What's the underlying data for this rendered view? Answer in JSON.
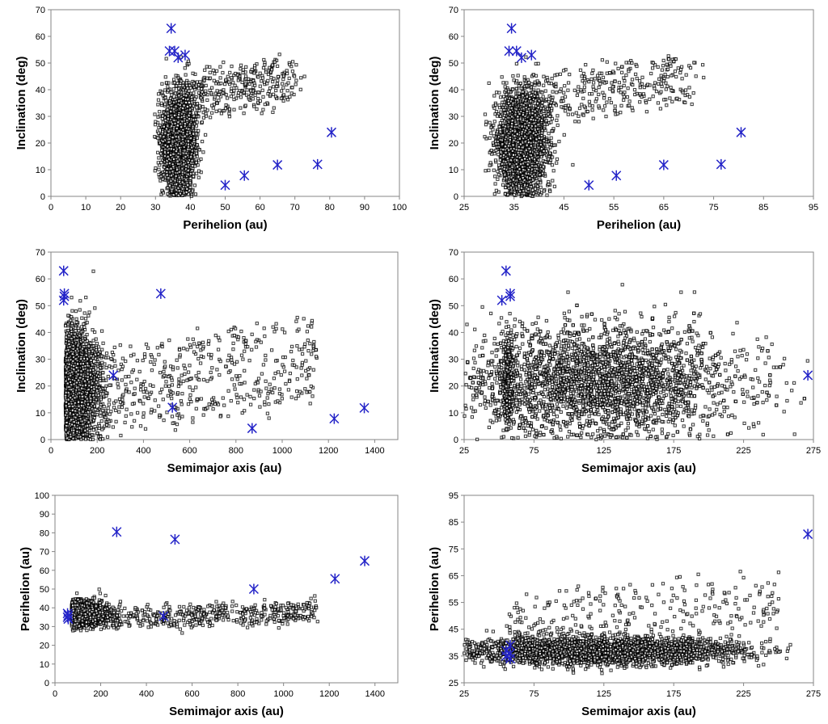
{
  "chart_data": [
    {
      "type": "scatter",
      "xlabel": "Perihelion (au)",
      "ylabel": "Inclination (deg)",
      "xlim": [
        0,
        100
      ],
      "ylim": [
        0,
        70
      ],
      "xticks": [
        0,
        10,
        20,
        30,
        40,
        50,
        60,
        70,
        80,
        90,
        100
      ],
      "yticks": [
        0,
        10,
        20,
        30,
        40,
        50,
        60,
        70
      ],
      "series": [
        {
          "values_summary": "dense cloud of ~6000 objects",
          "cloud": {
            "x_center": 36.5,
            "x_spread": 2.2,
            "y_center": 20,
            "y_spread": 9,
            "n": 2600,
            "tail": {
              "x_from": 38,
              "x_to": 70,
              "y_from": 28,
              "y_to": 52,
              "n": 350
            }
          }
        },
        {
          "highlighted": [
            [
              34.5,
              63
            ],
            [
              34,
              54.5
            ],
            [
              35.5,
              54.5
            ],
            [
              36.5,
              52
            ],
            [
              38.5,
              53
            ],
            [
              50,
              4.2
            ],
            [
              55.5,
              7.8
            ],
            [
              65,
              11.8
            ],
            [
              76.5,
              12
            ],
            [
              80.5,
              24
            ]
          ]
        }
      ]
    },
    {
      "type": "scatter",
      "xlabel": "Perihelion (au)",
      "ylabel": "Inclination (deg)",
      "xlim": [
        25,
        95
      ],
      "ylim": [
        0,
        70
      ],
      "xticks": [
        25,
        35,
        45,
        55,
        65,
        75,
        85,
        95
      ],
      "yticks": [
        0,
        10,
        20,
        30,
        40,
        50,
        60,
        70
      ],
      "series": [
        {
          "cloud": {
            "x_center": 36.5,
            "x_spread": 2.4,
            "y_center": 20,
            "y_spread": 9,
            "n": 2600,
            "tail": {
              "x_from": 38,
              "x_to": 70,
              "y_from": 28,
              "y_to": 52,
              "n": 350
            }
          }
        },
        {
          "highlighted": [
            [
              34.5,
              63
            ],
            [
              34,
              54.5
            ],
            [
              35.5,
              54.5
            ],
            [
              36.5,
              52
            ],
            [
              38.5,
              53
            ],
            [
              50,
              4.2
            ],
            [
              55.5,
              7.8
            ],
            [
              65,
              11.8
            ],
            [
              76.5,
              12
            ],
            [
              80.5,
              24
            ]
          ]
        }
      ]
    },
    {
      "type": "scatter",
      "xlabel": "Semimajor axis (au)",
      "ylabel": "Inclination (deg)",
      "xlim": [
        0,
        1500
      ],
      "ylim": [
        0,
        70
      ],
      "xticks": [
        0,
        200,
        400,
        600,
        800,
        1000,
        1200,
        1400
      ],
      "yticks": [
        0,
        10,
        20,
        30,
        40,
        50,
        60,
        70
      ],
      "series": [
        {
          "cloud": {
            "x_center": 90,
            "x_spread": 45,
            "y_center": 20,
            "y_spread": 10,
            "n": 2600,
            "tail": {
              "x_from": 150,
              "x_to": 1150,
              "y_from": 2,
              "y_to": 45,
              "n": 500
            }
          }
        },
        {
          "highlighted": [
            [
              55,
              63
            ],
            [
              58,
              54.5
            ],
            [
              58,
              53.5
            ],
            [
              55,
              52
            ],
            [
              475,
              54.5
            ],
            [
              270,
              24
            ],
            [
              525,
              12
            ],
            [
              870,
              4.2
            ],
            [
              1225,
              7.8
            ],
            [
              1355,
              11.8
            ]
          ]
        }
      ]
    },
    {
      "type": "scatter",
      "xlabel": "Semimajor axis (au)",
      "ylabel": "Inclination (deg)",
      "xlim": [
        25,
        275
      ],
      "ylim": [
        0,
        70
      ],
      "xticks": [
        25,
        75,
        125,
        175,
        225,
        275
      ],
      "yticks": [
        0,
        10,
        20,
        30,
        40,
        50,
        60,
        70
      ],
      "series": [
        {
          "cloud": {
            "x_center": 120,
            "x_spread": 50,
            "y_center": 22,
            "y_spread": 10,
            "n": 3000,
            "tail": {
              "x_from": 55,
              "x_to": 58,
              "y_from": 5,
              "y_to": 40,
              "n": 300
            }
          }
        },
        {
          "highlighted": [
            [
              55,
              63
            ],
            [
              58,
              54.5
            ],
            [
              58,
              53.5
            ],
            [
              52,
              52
            ],
            [
              271,
              24
            ]
          ]
        }
      ]
    },
    {
      "type": "scatter",
      "xlabel": "Semimajor axis (au)",
      "ylabel": "Perihelion (au)",
      "xlim": [
        0,
        1500
      ],
      "ylim": [
        0,
        100
      ],
      "xticks": [
        0,
        200,
        400,
        600,
        800,
        1000,
        1200,
        1400
      ],
      "yticks": [
        0,
        10,
        20,
        30,
        40,
        50,
        60,
        70,
        80,
        90,
        100
      ],
      "series": [
        {
          "cloud": {
            "x_center": 100,
            "x_spread": 45,
            "y_center": 37,
            "y_spread": 3,
            "n": 2600,
            "tail": {
              "x_from": 150,
              "x_to": 1150,
              "y_from": 30,
              "y_to": 42,
              "n": 500
            }
          }
        },
        {
          "highlighted": [
            [
              55,
              37
            ],
            [
              58,
              36
            ],
            [
              55,
              35
            ],
            [
              58,
              34
            ],
            [
              270,
              80.5
            ],
            [
              525,
              76.5
            ],
            [
              475,
              35.5
            ],
            [
              870,
              50
            ],
            [
              1225,
              55.5
            ],
            [
              1355,
              65
            ]
          ]
        }
      ]
    },
    {
      "type": "scatter",
      "xlabel": "Semimajor axis (au)",
      "ylabel": "Perihelion (au)",
      "xlim": [
        25,
        275
      ],
      "ylim": [
        25,
        95
      ],
      "xticks": [
        25,
        75,
        125,
        175,
        225,
        275
      ],
      "yticks": [
        25,
        35,
        45,
        55,
        65,
        75,
        85,
        95
      ],
      "series": [
        {
          "cloud": {
            "x_center": 120,
            "x_spread": 50,
            "y_center": 37,
            "y_spread": 2.5,
            "n": 3000,
            "tail": {
              "x_from": 55,
              "x_to": 250,
              "y_from": 40,
              "y_to": 66,
              "n": 250
            }
          }
        },
        {
          "highlighted": [
            [
              55,
              37
            ],
            [
              58,
              36
            ],
            [
              55,
              35
            ],
            [
              58,
              34
            ],
            [
              58,
              39
            ],
            [
              271,
              80.5
            ]
          ]
        }
      ]
    }
  ]
}
